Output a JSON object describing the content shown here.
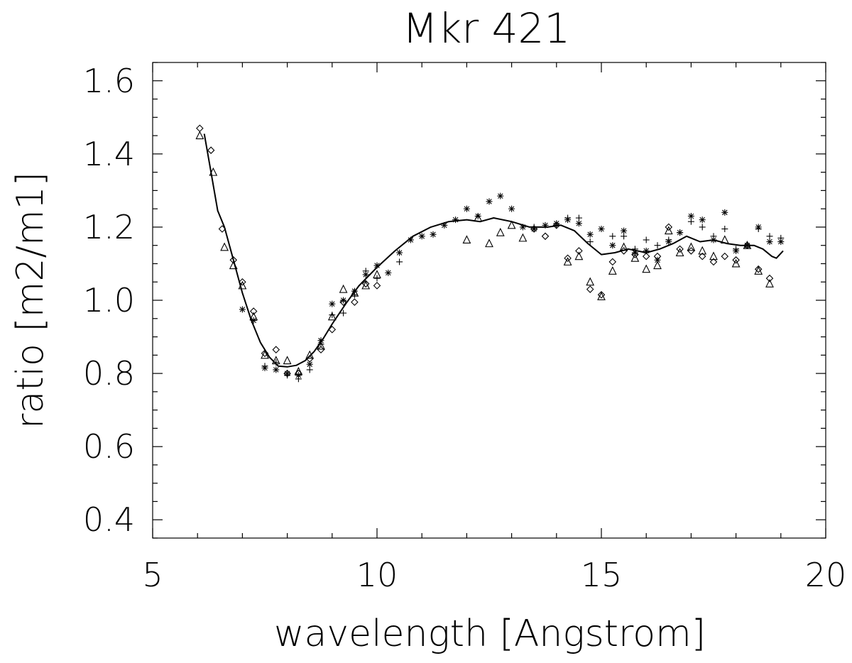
{
  "chart_data": {
    "type": "scatter",
    "title": "Mkr 421",
    "xlabel": "wavelength [Angstrom]",
    "ylabel": "ratio [m2/m1]",
    "xlim": [
      5,
      20
    ],
    "ylim": [
      0.35,
      1.65
    ],
    "x_ticks": [
      5,
      10,
      15,
      20
    ],
    "x_tick_labels": [
      "5",
      "10",
      "15",
      "20"
    ],
    "y_ticks": [
      0.4,
      0.6,
      0.8,
      1.0,
      1.2,
      1.4,
      1.6
    ],
    "y_tick_labels": [
      "0.4",
      "0.6",
      "0.8",
      "1.0",
      "1.2",
      "1.4",
      "1.6"
    ],
    "grid": false,
    "series": [
      {
        "marker": "line",
        "x": [
          6.15,
          6.3,
          6.45,
          6.6,
          6.8,
          7.0,
          7.2,
          7.4,
          7.6,
          7.8,
          8.0,
          8.2,
          8.4,
          8.6,
          8.8,
          9.0,
          9.3,
          9.6,
          10.0,
          10.4,
          10.8,
          11.2,
          11.6,
          12.0,
          12.3,
          12.6,
          13.0,
          13.4,
          13.8,
          14.1,
          14.4,
          14.7,
          15.0,
          15.3,
          15.6,
          16.0,
          16.3,
          16.6,
          16.9,
          17.2,
          17.5,
          17.8,
          18.1,
          18.4,
          18.6,
          18.8,
          18.9,
          19.05
        ],
        "y": [
          1.455,
          1.35,
          1.245,
          1.2,
          1.11,
          1.02,
          0.945,
          0.885,
          0.845,
          0.82,
          0.818,
          0.822,
          0.835,
          0.86,
          0.895,
          0.935,
          0.99,
          1.04,
          1.09,
          1.135,
          1.175,
          1.2,
          1.215,
          1.22,
          1.215,
          1.225,
          1.215,
          1.2,
          1.2,
          1.205,
          1.19,
          1.155,
          1.125,
          1.13,
          1.14,
          1.13,
          1.14,
          1.155,
          1.175,
          1.16,
          1.165,
          1.155,
          1.15,
          1.15,
          1.14,
          1.12,
          1.115,
          1.135
        ]
      },
      {
        "marker": "diamond",
        "x": [
          6.05,
          6.3,
          6.55,
          6.8,
          7.0,
          7.25,
          7.5,
          7.75,
          8.0,
          8.25,
          8.5,
          8.75,
          9.0,
          9.25,
          9.5,
          9.75,
          10.0,
          13.5,
          13.75,
          14.0,
          14.25,
          14.5,
          14.75,
          15.0,
          15.25,
          15.5,
          15.75,
          16.0,
          16.25,
          16.5,
          16.75,
          17.0,
          17.25,
          17.5,
          17.75,
          18.0,
          18.25,
          18.5,
          18.75
        ],
        "y": [
          1.47,
          1.41,
          1.195,
          1.11,
          1.05,
          0.97,
          0.855,
          0.865,
          0.8,
          0.8,
          0.84,
          0.865,
          0.92,
          0.995,
          0.995,
          1.045,
          1.04,
          1.195,
          1.175,
          1.205,
          1.115,
          1.135,
          1.03,
          1.015,
          1.105,
          1.135,
          1.125,
          1.12,
          1.12,
          1.2,
          1.14,
          1.135,
          1.12,
          1.105,
          1.12,
          1.11,
          1.15,
          1.085,
          1.06
        ]
      },
      {
        "marker": "triangle",
        "x": [
          6.05,
          6.35,
          6.6,
          6.8,
          7.0,
          7.25,
          7.5,
          7.75,
          8.0,
          8.25,
          8.5,
          8.75,
          9.0,
          9.25,
          9.5,
          9.75,
          10.0,
          12.0,
          12.25,
          12.5,
          12.75,
          13.0,
          13.25,
          14.25,
          14.5,
          14.75,
          15.0,
          15.25,
          15.5,
          15.75,
          16.0,
          16.25,
          16.5,
          16.75,
          17.0,
          17.25,
          17.5,
          17.75,
          18.0,
          18.25,
          18.5,
          18.75
        ],
        "y": [
          1.45,
          1.35,
          1.145,
          1.095,
          1.04,
          0.955,
          0.85,
          0.835,
          0.835,
          0.805,
          0.85,
          0.875,
          0.955,
          1.03,
          1.02,
          1.04,
          1.07,
          1.165,
          1.225,
          1.155,
          1.185,
          1.205,
          1.17,
          1.105,
          1.12,
          1.05,
          1.01,
          1.08,
          1.145,
          1.115,
          1.085,
          1.095,
          1.19,
          1.13,
          1.145,
          1.135,
          1.12,
          1.165,
          1.1,
          1.15,
          1.08,
          1.045
        ]
      },
      {
        "marker": "plus",
        "x": [
          7.5,
          7.75,
          8.0,
          8.25,
          8.5,
          8.75,
          9.0,
          9.25,
          9.5,
          9.75,
          10.0,
          10.5,
          13.5,
          14.0,
          14.25,
          14.5,
          14.75,
          15.25,
          15.5,
          15.75,
          16.0,
          16.25,
          16.5,
          16.75,
          17.0,
          17.25,
          17.5,
          17.75,
          18.0,
          18.25,
          18.5,
          18.75,
          19.0
        ],
        "y": [
          0.82,
          0.83,
          0.795,
          0.785,
          0.81,
          0.88,
          0.96,
          0.965,
          1.015,
          1.08,
          1.06,
          1.105,
          1.2,
          1.205,
          1.225,
          1.225,
          1.16,
          1.175,
          1.175,
          1.14,
          1.165,
          1.15,
          1.165,
          1.185,
          1.215,
          1.2,
          1.175,
          1.195,
          1.14,
          1.15,
          1.195,
          1.175,
          1.17
        ]
      },
      {
        "marker": "asterisk",
        "x": [
          7.0,
          7.25,
          7.5,
          7.75,
          8.0,
          8.25,
          8.5,
          8.75,
          9.0,
          9.25,
          9.5,
          9.75,
          10.0,
          10.25,
          10.5,
          10.75,
          11.0,
          11.25,
          11.5,
          11.75,
          12.0,
          12.25,
          12.5,
          12.75,
          13.0,
          13.25,
          13.5,
          13.75,
          14.0,
          14.25,
          14.5,
          14.75,
          15.0,
          15.25,
          15.5,
          15.75,
          16.0,
          16.25,
          16.5,
          16.75,
          17.0,
          17.25,
          17.5,
          17.75,
          18.0,
          18.25,
          18.5,
          18.75,
          19.0
        ],
        "y": [
          0.975,
          0.945,
          0.815,
          0.81,
          0.8,
          0.795,
          0.825,
          0.89,
          0.99,
          1.0,
          1.025,
          1.07,
          1.095,
          1.075,
          1.13,
          1.165,
          1.175,
          1.18,
          1.205,
          1.22,
          1.25,
          1.23,
          1.27,
          1.285,
          1.25,
          1.2,
          1.195,
          1.205,
          1.21,
          1.22,
          1.21,
          1.18,
          1.195,
          1.15,
          1.19,
          1.13,
          1.135,
          1.11,
          1.16,
          1.185,
          1.23,
          1.22,
          1.165,
          1.24,
          1.135,
          1.15,
          1.2,
          1.16,
          1.16
        ]
      }
    ]
  }
}
